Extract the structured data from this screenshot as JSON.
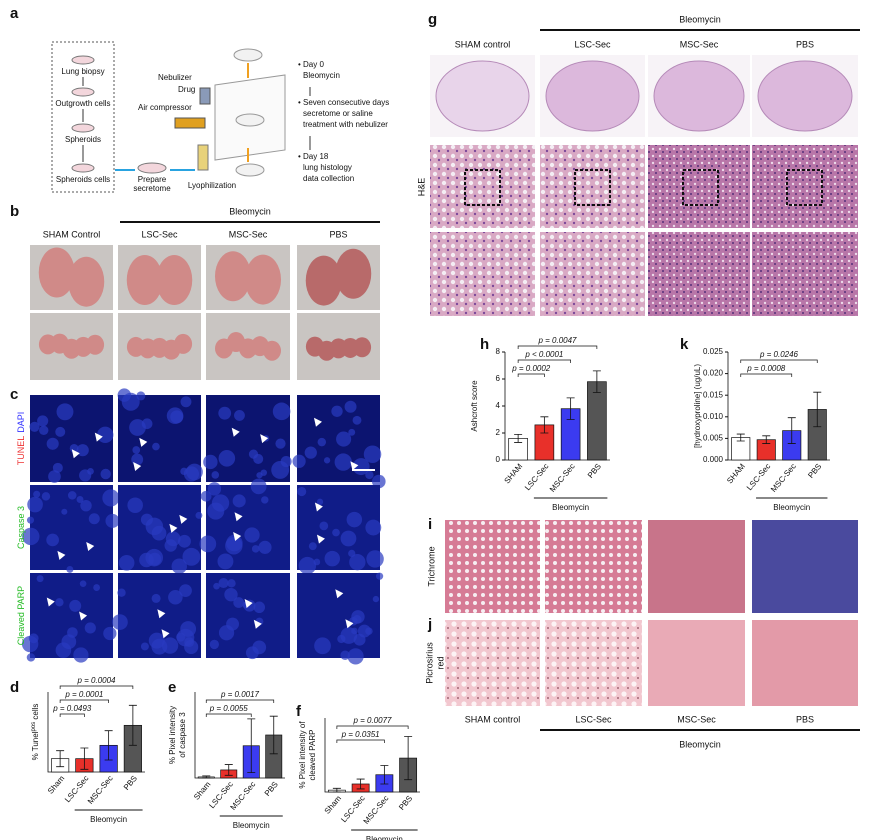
{
  "panel_labels": [
    "a",
    "b",
    "c",
    "d",
    "e",
    "f",
    "g",
    "h",
    "i",
    "j",
    "k"
  ],
  "panel_a": {
    "steps": [
      "Lung biopsy",
      "Outgrowth cells",
      "Spheroids",
      "Spheroids cells"
    ],
    "prepare": [
      "Prepare",
      "secretome"
    ],
    "lyophilization": "Lyophilization",
    "nebulizer": "Nebulizer",
    "drug": "Drug",
    "air_compressor": "Air compressor",
    "timeline": [
      [
        "• Day 0",
        "Bleomycin"
      ],
      [
        "• Seven consecutive days",
        "secretome or saline",
        "treatment with nebulizer"
      ],
      [
        "• Day 18",
        "lung histology",
        "data collection"
      ]
    ]
  },
  "panel_b": {
    "group": "Bleomycin",
    "columns": [
      "SHAM Control",
      "LSC-Sec",
      "MSC-Sec",
      "PBS"
    ]
  },
  "panel_c": {
    "rows": [
      [
        "TUNEL",
        "DAPI"
      ],
      [
        "Caspase 3"
      ],
      [
        "Cleaved PARP"
      ]
    ]
  },
  "panel_g": {
    "group": "Bleomycin",
    "columns": [
      "SHAM control",
      "LSC-Sec",
      "MSC-Sec",
      "PBS"
    ],
    "row_label": "H&E"
  },
  "panel_ij": {
    "rows": [
      [
        "Trichrome"
      ],
      [
        "Picrosirius",
        "red"
      ]
    ],
    "columns": [
      "SHAM control",
      "LSC-Sec",
      "MSC-Sec",
      "PBS"
    ],
    "group": "Bleomycin"
  },
  "chart_data": [
    {
      "type": "bar",
      "ylabel": [
        "% Tunel"
      ],
      "ylabel_superscript": "pos",
      "ylabel_suffix": " cells",
      "categories": [
        "Sham",
        "LSC-Sec",
        "MSC-Sec",
        "PBS"
      ],
      "values": [
        1,
        1,
        2,
        3.5
      ],
      "errors": [
        0.6,
        0.8,
        1.1,
        1.5
      ],
      "colors": [
        "#ffffff",
        "#e8302a",
        "#3b3bf0",
        "#555555"
      ],
      "ylim": [
        0,
        6
      ],
      "annotations": [
        "p = 0.0493",
        "p = 0.0001",
        "p = 0.0004"
      ],
      "group_label": "Bleomycin"
    },
    {
      "type": "bar",
      "ylabel": [
        "% Pixel intensity",
        "of caspase 3"
      ],
      "categories": [
        "Sham",
        "LSC-Sec",
        "MSC-Sec",
        "PBS"
      ],
      "values": [
        0.2,
        1.5,
        6,
        8
      ],
      "errors": [
        0.2,
        1,
        5,
        3.5
      ],
      "colors": [
        "#ffffff",
        "#e8302a",
        "#3b3bf0",
        "#555555"
      ],
      "ylim": [
        0,
        16
      ],
      "annotations": [
        "p = 0.0055",
        "p = 0.0017"
      ],
      "group_label": "Bleomycin"
    },
    {
      "type": "bar",
      "ylabel": [
        "% Pixel intensity of",
        "cleaved PARP"
      ],
      "categories": [
        "Sham",
        "LSC-Sec",
        "MSC-Sec",
        "PBS"
      ],
      "values": [
        0.3,
        1.3,
        2.8,
        5.5
      ],
      "errors": [
        0.3,
        0.8,
        1.5,
        3.5
      ],
      "colors": [
        "#ffffff",
        "#e8302a",
        "#3b3bf0",
        "#555555"
      ],
      "ylim": [
        0,
        12
      ],
      "annotations": [
        "p = 0.0351",
        "p = 0.0077"
      ],
      "group_label": "Bleomycin"
    },
    {
      "type": "bar",
      "ylabel": [
        "Ashcroft score"
      ],
      "categories": [
        "SHAM",
        "LSC-Sec",
        "MSC-Sec",
        "PBS"
      ],
      "values": [
        1.6,
        2.6,
        3.8,
        5.8
      ],
      "errors": [
        0.3,
        0.6,
        0.8,
        0.8
      ],
      "colors": [
        "#ffffff",
        "#e8302a",
        "#3b3bf0",
        "#555555"
      ],
      "ylim": [
        0,
        8
      ],
      "yticks": [
        0,
        2,
        4,
        6,
        8
      ],
      "annotations": [
        "p = 0.0002",
        "p < 0.0001",
        "p = 0.0047"
      ],
      "group_label": "Bleomycin"
    },
    {
      "type": "bar",
      "ylabel": [
        "[hydroxyproline] (ug/uL)"
      ],
      "categories": [
        "SHAM",
        "LSC-Sec",
        "MSC-Sec",
        "PBS"
      ],
      "values": [
        0.0052,
        0.0047,
        0.0068,
        0.0117
      ],
      "errors": [
        0.0008,
        0.0009,
        0.003,
        0.004
      ],
      "colors": [
        "#ffffff",
        "#e8302a",
        "#3b3bf0",
        "#555555"
      ],
      "ylim": [
        0,
        0.025
      ],
      "yticks": [
        {
          "value": 0,
          "label": "0.000"
        },
        {
          "value": 0.005,
          "label": "0.005"
        },
        {
          "value": 0.01,
          "label": "0.010"
        },
        {
          "value": 0.015,
          "label": "0.015"
        },
        {
          "value": 0.02,
          "label": "0.020"
        },
        {
          "value": 0.025,
          "label": "0.025"
        }
      ],
      "annotations": [
        "p = 0.0008",
        "p = 0.0246"
      ],
      "group_label": "Bleomycin"
    }
  ]
}
